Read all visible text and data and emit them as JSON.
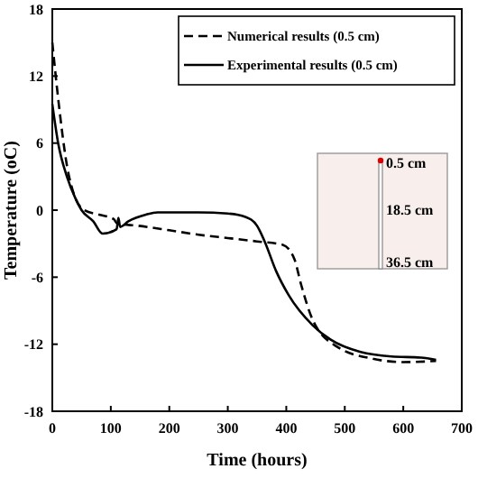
{
  "chart_data": {
    "type": "line",
    "xlabel": "Time (hours)",
    "ylabel": "Temperature (oC)",
    "xlim": [
      0,
      700
    ],
    "xticks": [
      0,
      100,
      200,
      300,
      400,
      500,
      600,
      700
    ],
    "ylim": [
      -18,
      18
    ],
    "yticks": [
      -18,
      -12,
      -6,
      0,
      6,
      12,
      18
    ],
    "grid": false,
    "legend": "top right",
    "marker": "none",
    "annotations": [
      "0.5 cm",
      "18.5 cm",
      "36.5 cm"
    ],
    "series": [
      {
        "name": "Numerical results (0.5 cm)",
        "color": "#000000",
        "line_style": "dashed",
        "x": [
          0,
          10,
          25,
          40,
          55,
          80,
          105,
          111,
          147,
          200,
          250,
          300,
          350,
          394,
          414,
          425,
          445,
          486,
          548,
          600,
          656
        ],
        "values": [
          15,
          10,
          4,
          1,
          0,
          -0.4,
          -0.8,
          -1.2,
          -1.4,
          -1.8,
          -2.2,
          -2.5,
          -2.8,
          -3.1,
          -4.4,
          -6.6,
          -9.8,
          -12.2,
          -13.3,
          -13.6,
          -13.5
        ]
      },
      {
        "name": "Experimental results (0.5 cm)",
        "color": "#000000",
        "line_style": "solid",
        "x": [
          0,
          10,
          25,
          40,
          50,
          70,
          86,
          110,
          113,
          116,
          130,
          160,
          180,
          250,
          300,
          330,
          350,
          363,
          383,
          404,
          445,
          476,
          527,
          580,
          630,
          656
        ],
        "values": [
          9.5,
          6,
          3,
          1,
          0,
          -1,
          -2.1,
          -1.7,
          -0.7,
          -1.5,
          -1,
          -0.4,
          -0.2,
          -0.2,
          -0.3,
          -0.6,
          -1.4,
          -2.8,
          -5.5,
          -7.6,
          -10.3,
          -11.6,
          -12.7,
          -13.1,
          -13.2,
          -13.4
        ]
      }
    ]
  }
}
